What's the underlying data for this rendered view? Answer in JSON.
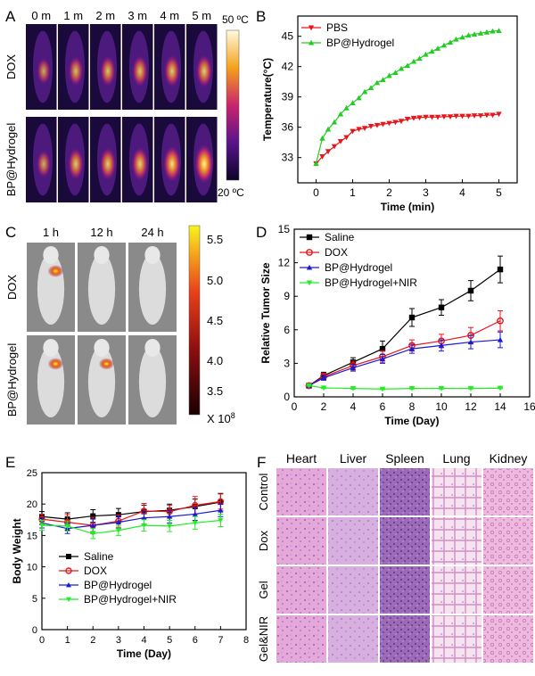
{
  "panel_letters": {
    "a": "A",
    "b": "B",
    "c": "C",
    "d": "D",
    "e": "E",
    "f": "F"
  },
  "panel_a": {
    "time_labels": [
      "0 m",
      "1 m",
      "2 m",
      "3 m",
      "4 m",
      "5 m"
    ],
    "row_labels": [
      "DOX",
      "BP@Hydrogel"
    ],
    "hot_spot_intensity": [
      [
        0.35,
        0.5,
        0.55,
        0.58,
        0.62,
        0.65
      ],
      [
        0.4,
        0.6,
        0.65,
        0.7,
        0.82,
        0.98
      ]
    ],
    "colorbar_max_label": "50 ºC",
    "colorbar_min_label": "20 ºC"
  },
  "panel_c": {
    "time_labels": [
      "1 h",
      "12 h",
      "24 h"
    ],
    "row_labels": [
      "DOX",
      "BP@Hydrogel"
    ],
    "signal_intensity": [
      [
        0.85,
        0,
        0
      ],
      [
        0.8,
        0.75,
        0
      ]
    ],
    "colorbar_ticks": [
      "5.5",
      "5.0",
      "4.5",
      "4.0",
      "3.5"
    ],
    "colorbar_unit_prefix": "X 10",
    "colorbar_unit_exp": "8"
  },
  "panel_f": {
    "column_labels": [
      "Heart",
      "Liver",
      "Spleen",
      "Lung",
      "Kidney"
    ],
    "row_labels": [
      "Control",
      "Dox",
      "Gel",
      "Gel&NIR"
    ]
  },
  "chart_data": [
    {
      "panel": "B",
      "type": "line",
      "xlabel": "Time (min)",
      "ylabel": "Temperature(°C)",
      "xlim": [
        -0.5,
        5.5
      ],
      "ylim": [
        30.5,
        47
      ],
      "x_ticks": [
        0,
        1,
        2,
        3,
        4,
        5
      ],
      "y_ticks": [
        33,
        36,
        39,
        42,
        45
      ],
      "legend": "top-left",
      "series": [
        {
          "name": "PBS",
          "color": "#e8161b",
          "marker": "triangle-down",
          "x": [
            0,
            0.17,
            0.33,
            0.5,
            0.67,
            0.83,
            1,
            1.17,
            1.33,
            1.5,
            1.67,
            1.83,
            2,
            2.17,
            2.33,
            2.5,
            2.67,
            2.83,
            3,
            3.17,
            3.33,
            3.5,
            3.67,
            3.83,
            4,
            4.17,
            4.33,
            4.5,
            4.67,
            4.83,
            5
          ],
          "y": [
            32.4,
            33.1,
            33.6,
            34.1,
            34.6,
            35.0,
            35.6,
            35.8,
            35.9,
            36.1,
            36.2,
            36.3,
            36.4,
            36.5,
            36.6,
            36.8,
            36.9,
            36.95,
            37.0,
            37.0,
            37.0,
            37.05,
            37.05,
            37.1,
            37.1,
            37.1,
            37.15,
            37.15,
            37.2,
            37.2,
            37.3
          ]
        },
        {
          "name": "BP@Hydrogel",
          "color": "#22cc22",
          "marker": "triangle-up",
          "x": [
            0,
            0.17,
            0.33,
            0.5,
            0.67,
            0.83,
            1,
            1.17,
            1.33,
            1.5,
            1.67,
            1.83,
            2,
            2.17,
            2.33,
            2.5,
            2.67,
            2.83,
            3,
            3.17,
            3.33,
            3.5,
            3.67,
            3.83,
            4,
            4.17,
            4.33,
            4.5,
            4.67,
            4.83,
            5
          ],
          "y": [
            32.4,
            34.9,
            35.8,
            36.5,
            37.3,
            37.9,
            38.4,
            38.9,
            39.5,
            39.9,
            40.4,
            40.7,
            41.1,
            41.4,
            41.8,
            42.1,
            42.5,
            42.8,
            43.2,
            43.5,
            43.8,
            44.1,
            44.4,
            44.7,
            44.9,
            45.1,
            45.2,
            45.3,
            45.4,
            45.5,
            45.55
          ]
        }
      ]
    },
    {
      "panel": "D",
      "type": "line",
      "xlabel": "Time (Day)",
      "ylabel": "Relative Tumor Size",
      "xlim": [
        0,
        16
      ],
      "ylim": [
        0,
        15
      ],
      "x_ticks": [
        0,
        2,
        4,
        6,
        8,
        10,
        12,
        14,
        16
      ],
      "y_ticks": [
        0,
        3,
        6,
        9,
        12,
        15
      ],
      "legend": "top-left",
      "x": [
        1,
        2,
        4,
        6,
        8,
        10,
        12,
        14
      ],
      "series": [
        {
          "name": "Saline",
          "color": "#000000",
          "marker": "square",
          "values": [
            1.0,
            1.9,
            3.1,
            4.3,
            7.1,
            8.0,
            9.5,
            11.4
          ],
          "errors": [
            0.1,
            0.3,
            0.4,
            0.7,
            0.8,
            0.7,
            0.9,
            1.2
          ]
        },
        {
          "name": "DOX",
          "color": "#e8161b",
          "marker": "circle",
          "values": [
            1.0,
            1.8,
            2.8,
            3.6,
            4.6,
            5.0,
            5.5,
            6.8
          ],
          "errors": [
            0.1,
            0.3,
            0.4,
            0.5,
            0.5,
            0.6,
            0.7,
            0.9
          ]
        },
        {
          "name": "BP@Hydrogel",
          "color": "#1a1ad6",
          "marker": "triangle-up",
          "values": [
            1.0,
            1.7,
            2.6,
            3.4,
            4.3,
            4.6,
            4.9,
            5.1
          ],
          "errors": [
            0.1,
            0.2,
            0.3,
            0.4,
            0.4,
            0.5,
            0.6,
            0.7
          ]
        },
        {
          "name": "BP@Hydrogel+NIR",
          "color": "#22ee22",
          "marker": "triangle-down",
          "values": [
            1.0,
            0.8,
            0.75,
            0.7,
            0.75,
            0.75,
            0.75,
            0.78
          ],
          "errors": [
            0.05,
            0.05,
            0.05,
            0.05,
            0.05,
            0.05,
            0.05,
            0.05
          ]
        }
      ]
    },
    {
      "panel": "E",
      "type": "line",
      "xlabel": "Time (Day)",
      "ylabel": "Body Weight",
      "xlim": [
        0,
        8
      ],
      "ylim": [
        0,
        25
      ],
      "x_ticks": [
        0,
        1,
        2,
        3,
        4,
        5,
        6,
        7,
        8
      ],
      "y_ticks": [
        0,
        5,
        10,
        15,
        20,
        25
      ],
      "legend": "bottom-left",
      "x": [
        0,
        1,
        2,
        3,
        4,
        5,
        6,
        7
      ],
      "series": [
        {
          "name": "Saline",
          "color": "#000000",
          "marker": "square",
          "values": [
            18.0,
            17.6,
            18.1,
            18.3,
            18.8,
            19.0,
            19.6,
            20.3
          ],
          "errors": [
            0.8,
            1.0,
            1.0,
            1.0,
            1.0,
            1.0,
            1.2,
            1.4
          ]
        },
        {
          "name": "DOX",
          "color": "#e8161b",
          "marker": "circle",
          "values": [
            17.6,
            17.1,
            16.6,
            17.3,
            18.9,
            18.8,
            19.8,
            20.4
          ],
          "errors": [
            0.8,
            1.2,
            1.3,
            1.0,
            1.2,
            1.0,
            1.4,
            1.2
          ]
        },
        {
          "name": "BP@Hydrogel",
          "color": "#1a1ad6",
          "marker": "triangle-up",
          "values": [
            17.0,
            16.1,
            16.6,
            17.1,
            17.8,
            18.0,
            18.4,
            19.0
          ],
          "errors": [
            0.8,
            0.8,
            1.0,
            1.0,
            1.0,
            1.0,
            1.0,
            1.0
          ]
        },
        {
          "name": "BP@Hydrogel+NIR",
          "color": "#22ee22",
          "marker": "triangle-down",
          "values": [
            16.6,
            16.5,
            15.3,
            15.8,
            16.6,
            16.5,
            17.0,
            17.4
          ],
          "errors": [
            0.8,
            0.8,
            0.8,
            0.8,
            0.9,
            0.9,
            1.0,
            1.0
          ]
        }
      ]
    }
  ]
}
